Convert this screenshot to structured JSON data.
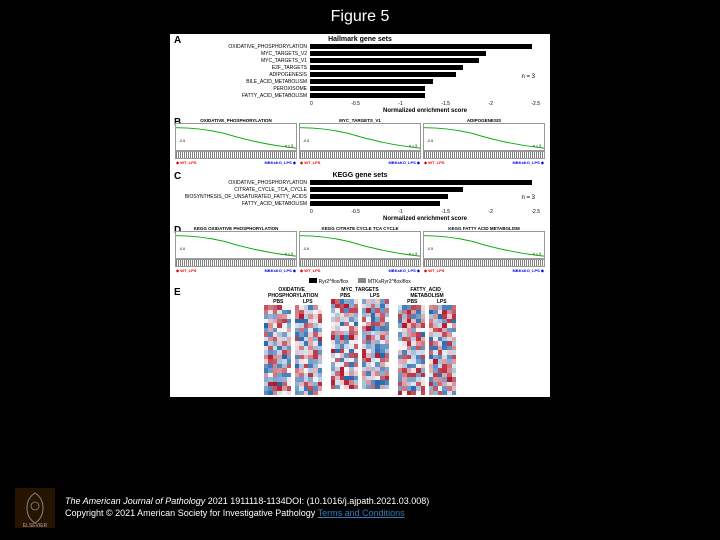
{
  "title": "Figure 5",
  "panelA": {
    "label": "A",
    "header": "Hallmark gene sets",
    "genesets": [
      {
        "name": "OXIDATIVE_PHOSPHORYLATION",
        "nes": -2.9
      },
      {
        "name": "MYC_TARGETS_V2",
        "nes": -2.3
      },
      {
        "name": "MYC_TARGETS_V1",
        "nes": -2.2
      },
      {
        "name": "E2F_TARGETS",
        "nes": -2.0
      },
      {
        "name": "ADIPOGENESIS",
        "nes": -1.9
      },
      {
        "name": "BILE_ACID_METABOLISM",
        "nes": -1.6
      },
      {
        "name": "PEROXISOME",
        "nes": -1.5
      },
      {
        "name": "FATTY_ACID_METABOLISM",
        "nes": -1.5
      }
    ],
    "axis_values": [
      "0",
      "-0.5",
      "-1",
      "-1.5",
      "-2",
      "-2.5"
    ],
    "axis_label": "Normalized enrichment score",
    "n_label": "n = 3"
  },
  "panelB": {
    "label": "B",
    "y_label": "Enrichment score",
    "plots": [
      {
        "title": "OXIDATIVE_PHOSPHORYLATION",
        "nes": "-0.5",
        "n": "n = 3"
      },
      {
        "title": "MYC_TARGETS_V1",
        "nes": "-0.5",
        "n": "n = 3"
      },
      {
        "title": "ADIPOGENESIS",
        "nes": "-0.5",
        "n": "n = 3"
      }
    ],
    "wt": "WT_LPS",
    "ko": "MBKsKO_LPS"
  },
  "panelC": {
    "label": "C",
    "header": "KEGG gene sets",
    "genesets": [
      {
        "name": "OXIDATIVE_PHOSPHORYLATION",
        "nes": -2.9
      },
      {
        "name": "CITRATE_CYCLE_TCA_CYCLE",
        "nes": -2.0
      },
      {
        "name": "BIOSYNTHESIS_OF_UNSATURATED_FATTY_ACIDS",
        "nes": -1.8
      },
      {
        "name": "FATTY_ACID_METABOLISM",
        "nes": -1.7
      }
    ],
    "axis_values": [
      "0",
      "-0.5",
      "-1",
      "-1.5",
      "-2",
      "-2.5"
    ],
    "axis_label": "Normalized enrichment score",
    "n_label": "n = 3"
  },
  "panelD": {
    "label": "D",
    "y_label": "Enrichment score",
    "plots": [
      {
        "title": "KEGG OXIDATIVE PHOSPHORYLATION",
        "nes": "-0.6",
        "n": "n = 3"
      },
      {
        "title": "KEGG CITRATE CYCLE TCA CYCLE",
        "nes": "-0.6",
        "n": "n = 3"
      },
      {
        "title": "KEGG FATTY ACID METABOLISM",
        "nes": "-0.5",
        "n": "n = 3"
      }
    ],
    "wt": "WT_LPS",
    "ko": "MBKsKO_LPS"
  },
  "panelE": {
    "label": "E",
    "legend": [
      {
        "label": "Ryr2^flox/flox",
        "color": "#000000"
      },
      {
        "label": "MTKsRyr2^flox/flox",
        "color": "#888888"
      }
    ],
    "groups": [
      {
        "title": "OXIDATIVE_\nPHOSPHORYLATION",
        "cols": [
          "PBS",
          "LPS"
        ]
      },
      {
        "title": "MYC_TARGETS",
        "cols": [
          "PBS",
          "LPS"
        ]
      },
      {
        "title": "FATTY_ACID_\nMETABOLISM",
        "cols": [
          "PBS",
          "LPS"
        ]
      }
    ],
    "heatmap_colors": {
      "low": "#2166ac",
      "mid": "#f7f7f7",
      "high": "#b2182b"
    }
  },
  "footer": {
    "journal": "The American Journal of Pathology",
    "citation": "2021 1911118-1134DOI: (10.1016/j.ajpath.2021.03.008)",
    "copyright": "Copyright © 2021 American Society for Investigative Pathology",
    "terms": "Terms and Conditions"
  }
}
